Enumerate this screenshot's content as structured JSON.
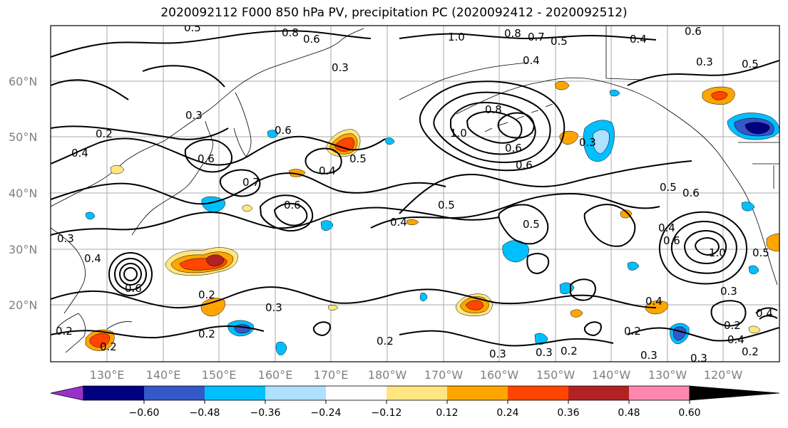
{
  "title": "2020092112 F000 850 hPa PV, precipitation PC (2020092412 - 2020092512)",
  "lat_labels": [
    "60°N",
    "50°N",
    "40°N",
    "30°N",
    "20°N"
  ],
  "lon_labels": [
    "130°E",
    "140°E",
    "150°E",
    "160°E",
    "170°E",
    "180°W",
    "170°W",
    "160°W",
    "150°W",
    "140°W",
    "130°W",
    "120°W"
  ],
  "colorbar": {
    "ticks": [
      "−0.60",
      "−0.48",
      "−0.36",
      "−0.24",
      "−0.12",
      "0.12",
      "0.24",
      "0.36",
      "0.48",
      "0.60"
    ],
    "colors": [
      "#9932cc",
      "#000080",
      "#3358c8",
      "#00bfff",
      "#aee0ff",
      "#ffffff",
      "#ffe680",
      "#ffa500",
      "#ff4500",
      "#b22222",
      "#ff88b0"
    ]
  },
  "contour_labels": [
    {
      "text": "0.5"
    },
    {
      "text": "0.8"
    },
    {
      "text": "0.6"
    },
    {
      "text": "1.0"
    },
    {
      "text": "0.8"
    },
    {
      "text": "0.7"
    },
    {
      "text": "0.5"
    },
    {
      "text": "0.4"
    },
    {
      "text": "0.6"
    },
    {
      "text": "0.4"
    },
    {
      "text": "0.3"
    },
    {
      "text": "0.5"
    },
    {
      "text": "0.3"
    },
    {
      "text": "0.2"
    },
    {
      "text": "0.6"
    },
    {
      "text": "0.3"
    },
    {
      "text": "0.8"
    },
    {
      "text": "1.0"
    },
    {
      "text": "0.6"
    },
    {
      "text": "0.3"
    },
    {
      "text": "0.6"
    },
    {
      "text": "0.4"
    },
    {
      "text": "0.5"
    },
    {
      "text": "0.6"
    },
    {
      "text": "0.4"
    },
    {
      "text": "0.7"
    },
    {
      "text": "0.6"
    },
    {
      "text": "0.5"
    },
    {
      "text": "0.6"
    },
    {
      "text": "0.5"
    },
    {
      "text": "0.4"
    },
    {
      "text": "0.5"
    },
    {
      "text": "0.4"
    },
    {
      "text": "0.6"
    },
    {
      "text": "0.4"
    },
    {
      "text": "0.6"
    },
    {
      "text": "1.0"
    },
    {
      "text": "0.2"
    },
    {
      "text": "0.3"
    },
    {
      "text": "0.2"
    },
    {
      "text": "0.2"
    },
    {
      "text": "0.2"
    },
    {
      "text": "0.3"
    },
    {
      "text": "0.2"
    },
    {
      "text": "0.3"
    },
    {
      "text": "0.3"
    },
    {
      "text": "0.3"
    },
    {
      "text": "0.2"
    },
    {
      "text": "0.4"
    },
    {
      "text": "0.2"
    },
    {
      "text": "0.4"
    },
    {
      "text": "0.2"
    },
    {
      "text": "0.5"
    },
    {
      "text": "0.2"
    },
    {
      "text": "0.3"
    },
    {
      "text": "0.3"
    },
    {
      "text": "0.4"
    }
  ]
}
